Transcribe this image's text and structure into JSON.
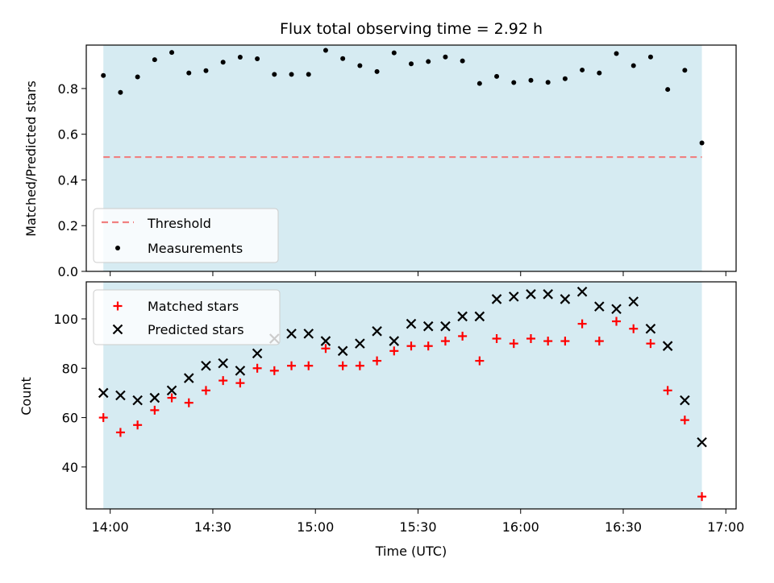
{
  "chart_data": [
    {
      "type": "scatter",
      "title": "Flux total observing time = 2.92 h",
      "xlabel": "",
      "ylabel": "Matched/Predicted stars",
      "ylim": [
        0,
        0.99
      ],
      "yticks": [
        "0.0",
        "0.2",
        "0.4",
        "0.6",
        "0.8"
      ],
      "yticks_values": [
        0,
        0.2,
        0.4,
        0.6,
        0.8
      ],
      "shaded_span": [
        "13:58",
        "16:53"
      ],
      "threshold": 0.5,
      "legend": {
        "placement": "lower-left",
        "entries": [
          "Threshold",
          "Measurements"
        ]
      },
      "series": [
        {
          "name": "Measurements",
          "color": "#000000",
          "marker": "dot",
          "x": [
            "13:58",
            "14:03",
            "14:08",
            "14:13",
            "14:18",
            "14:23",
            "14:28",
            "14:33",
            "14:38",
            "14:43",
            "14:48",
            "14:53",
            "14:58",
            "15:03",
            "15:08",
            "15:13",
            "15:18",
            "15:23",
            "15:28",
            "15:33",
            "15:38",
            "15:43",
            "15:48",
            "15:53",
            "15:58",
            "16:03",
            "16:08",
            "16:13",
            "16:18",
            "16:23",
            "16:28",
            "16:33",
            "16:38",
            "16:43",
            "16:48",
            "16:53"
          ],
          "y": [
            0.857,
            0.783,
            0.851,
            0.926,
            0.958,
            0.868,
            0.878,
            0.915,
            0.937,
            0.93,
            0.862,
            0.862,
            0.862,
            0.967,
            0.931,
            0.9,
            0.874,
            0.956,
            0.908,
            0.918,
            0.938,
            0.921,
            0.822,
            0.853,
            0.826,
            0.836,
            0.827,
            0.843,
            0.881,
            0.868,
            0.953,
            0.9,
            0.938,
            0.796,
            0.88,
            0.562
          ]
        },
        {
          "name": "Threshold",
          "color": "#f08080",
          "style": "dashed",
          "x": [
            "13:58",
            "16:53"
          ],
          "y": [
            0.5,
            0.5
          ]
        }
      ],
      "grid": false
    },
    {
      "type": "scatter",
      "title": "",
      "xlabel": "Time (UTC)",
      "ylabel": "Count",
      "ylim": [
        23,
        115
      ],
      "yticks": [
        "40",
        "60",
        "80",
        "100"
      ],
      "yticks_values": [
        40,
        60,
        80,
        100
      ],
      "xlim": [
        "13:53",
        "17:03"
      ],
      "xticks": [
        "14:00",
        "14:30",
        "15:00",
        "15:30",
        "16:00",
        "16:30",
        "17:00"
      ],
      "shaded_span": [
        "13:58",
        "16:53"
      ],
      "legend": {
        "placement": "top-left",
        "entries": [
          "Matched stars",
          "Predicted stars"
        ]
      },
      "series": [
        {
          "name": "Matched stars",
          "color": "#ff0000",
          "marker": "plus",
          "x": [
            "13:58",
            "14:03",
            "14:08",
            "14:13",
            "14:18",
            "14:23",
            "14:28",
            "14:33",
            "14:38",
            "14:43",
            "14:48",
            "14:53",
            "14:58",
            "15:03",
            "15:08",
            "15:13",
            "15:18",
            "15:23",
            "15:28",
            "15:33",
            "15:38",
            "15:43",
            "15:48",
            "15:53",
            "15:58",
            "16:03",
            "16:08",
            "16:13",
            "16:18",
            "16:23",
            "16:28",
            "16:33",
            "16:38",
            "16:43",
            "16:48",
            "16:53"
          ],
          "y": [
            60,
            54,
            57,
            63,
            68,
            66,
            71,
            75,
            74,
            80,
            79,
            81,
            81,
            88,
            81,
            81,
            83,
            87,
            89,
            89,
            91,
            93,
            83,
            92,
            90,
            92,
            91,
            91,
            98,
            91,
            99,
            96,
            90,
            71,
            59,
            28
          ]
        },
        {
          "name": "Predicted stars",
          "color": "#000000",
          "marker": "x",
          "x": [
            "13:58",
            "14:03",
            "14:08",
            "14:13",
            "14:18",
            "14:23",
            "14:28",
            "14:33",
            "14:38",
            "14:43",
            "14:48",
            "14:53",
            "14:58",
            "15:03",
            "15:08",
            "15:13",
            "15:18",
            "15:23",
            "15:28",
            "15:33",
            "15:38",
            "15:43",
            "15:48",
            "15:53",
            "15:58",
            "16:03",
            "16:08",
            "16:13",
            "16:18",
            "16:23",
            "16:28",
            "16:33",
            "16:38",
            "16:43",
            "16:48",
            "16:53"
          ],
          "y": [
            70,
            69,
            67,
            68,
            71,
            76,
            81,
            82,
            79,
            86,
            92,
            94,
            94,
            91,
            87,
            90,
            95,
            91,
            98,
            97,
            97,
            101,
            101,
            108,
            109,
            110,
            110,
            108,
            111,
            105,
            104,
            107,
            96,
            89,
            67,
            50
          ]
        }
      ],
      "grid": false
    }
  ],
  "colors": {
    "span_fill": "#add8e6",
    "threshold": "#f08080",
    "matched": "#ff0000",
    "predicted": "#000000",
    "measurements": "#000000"
  }
}
